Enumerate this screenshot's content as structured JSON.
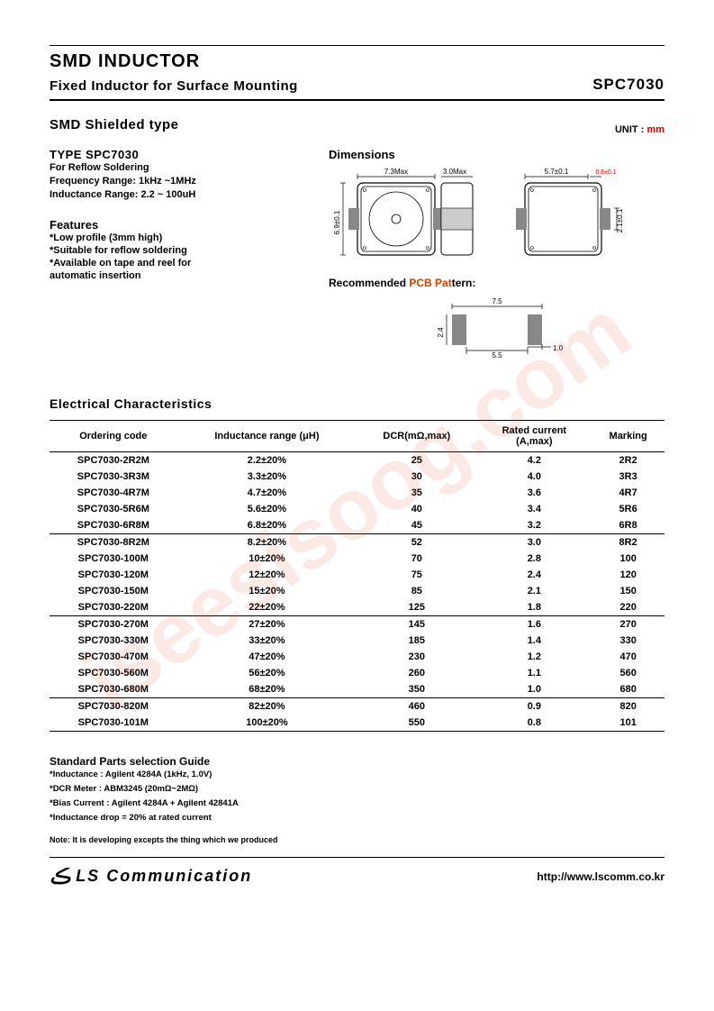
{
  "watermark": "iseesisoog.com",
  "header": {
    "main_title": "SMD INDUCTOR",
    "sub_title": "Fixed Inductor for Surface Mounting",
    "part_no": "SPC7030"
  },
  "section_shielded": "SMD Shielded type",
  "unit_label": "UNIT : ",
  "unit_value": "mm",
  "type_block": {
    "title": "TYPE SPC7030",
    "line1": "For Reflow Soldering",
    "line2": "Frequency Range: 1kHz ~1MHz",
    "line3": "Inductance Range: 2.2 ~ 100uH"
  },
  "features": {
    "title": "Features",
    "f1": "*Low profile (3mm high)",
    "f2": "*Suitable for reflow soldering",
    "f3": "*Available on tape and reel for",
    "f4": "  automatic insertion"
  },
  "dimensions": {
    "title": "Dimensions",
    "top_w": "7.3Max",
    "top_h": "3.0Max",
    "left_h": "6.9±0.1",
    "side_w": "5.7±0.1",
    "side_edge": "0.6±0.1",
    "side_h": "2.1±0.1"
  },
  "pcb": {
    "title_a": "Recommended ",
    "title_b": "PCB Pat",
    "title_c": "tern:",
    "w": "7.5",
    "h": "2.4",
    "gap": "5.5",
    "pad": "1.0"
  },
  "ec_title": "Electrical Characteristics",
  "ec_headers": {
    "c1": "Ordering code",
    "c2": "Inductance range (μH)",
    "c3": "DCR(mΩ,max)",
    "c4a": "Rated current",
    "c4b": "(A,max)",
    "c5": "Marking"
  },
  "ec_rows": [
    {
      "code": "SPC7030-2R2M",
      "ind": "2.2±20%",
      "dcr": "25",
      "cur": "4.2",
      "mark": "2R2",
      "end": false
    },
    {
      "code": "SPC7030-3R3M",
      "ind": "3.3±20%",
      "dcr": "30",
      "cur": "4.0",
      "mark": "3R3",
      "end": false
    },
    {
      "code": "SPC7030-4R7M",
      "ind": "4.7±20%",
      "dcr": "35",
      "cur": "3.6",
      "mark": "4R7",
      "end": false
    },
    {
      "code": "SPC7030-5R6M",
      "ind": "5.6±20%",
      "dcr": "40",
      "cur": "3.4",
      "mark": "5R6",
      "end": false
    },
    {
      "code": "SPC7030-6R8M",
      "ind": "6.8±20%",
      "dcr": "45",
      "cur": "3.2",
      "mark": "6R8",
      "end": true
    },
    {
      "code": "SPC7030-8R2M",
      "ind": "8.2±20%",
      "dcr": "52",
      "cur": "3.0",
      "mark": "8R2",
      "end": false
    },
    {
      "code": "SPC7030-100M",
      "ind": "10±20%",
      "dcr": "70",
      "cur": "2.8",
      "mark": "100",
      "end": false
    },
    {
      "code": "SPC7030-120M",
      "ind": "12±20%",
      "dcr": "75",
      "cur": "2.4",
      "mark": "120",
      "end": false
    },
    {
      "code": "SPC7030-150M",
      "ind": "15±20%",
      "dcr": "85",
      "cur": "2.1",
      "mark": "150",
      "end": false
    },
    {
      "code": "SPC7030-220M",
      "ind": "22±20%",
      "dcr": "125",
      "cur": "1.8",
      "mark": "220",
      "end": true
    },
    {
      "code": "SPC7030-270M",
      "ind": "27±20%",
      "dcr": "145",
      "cur": "1.6",
      "mark": "270",
      "end": false
    },
    {
      "code": "SPC7030-330M",
      "ind": "33±20%",
      "dcr": "185",
      "cur": "1.4",
      "mark": "330",
      "end": false
    },
    {
      "code": "SPC7030-470M",
      "ind": "47±20%",
      "dcr": "230",
      "cur": "1.2",
      "mark": "470",
      "end": false
    },
    {
      "code": "SPC7030-560M",
      "ind": "56±20%",
      "dcr": "260",
      "cur": "1.1",
      "mark": "560",
      "end": false
    },
    {
      "code": "SPC7030-680M",
      "ind": "68±20%",
      "dcr": "350",
      "cur": "1.0",
      "mark": "680",
      "end": true
    },
    {
      "code": "SPC7030-820M",
      "ind": "82±20%",
      "dcr": "460",
      "cur": "0.9",
      "mark": "820",
      "end": false
    },
    {
      "code": "SPC7030-101M",
      "ind": "100±20%",
      "dcr": "550",
      "cur": "0.8",
      "mark": "101",
      "end": false
    }
  ],
  "guide": {
    "title": "Standard Parts selection Guide",
    "g1": "*Inductance : Agilent 4284A (1kHz, 1.0V)",
    "g2": "*DCR Meter : ABM3245 (20mΩ~2MΩ)",
    "g3": "*Bias Current : Agilent 4284A + Agilent 42841A",
    "g4": "*Inductance drop = 20% at rated current"
  },
  "note": "Note: It is developing excepts the thing which we produced",
  "footer": {
    "company": "LS Communication",
    "url": "http://www.lscomm.co.kr"
  },
  "colors": {
    "watermark": "rgba(220,70,50,0.12)",
    "accent": "#c40",
    "pad_fill": "#888888",
    "line": "#000000"
  }
}
